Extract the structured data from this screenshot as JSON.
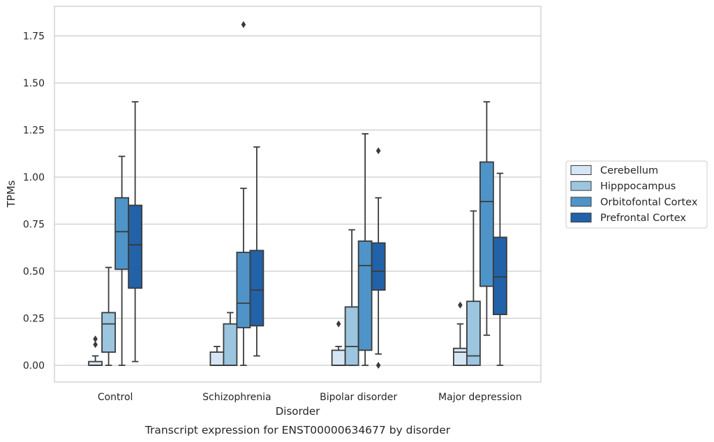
{
  "chart_data": {
    "type": "boxplot",
    "title": "",
    "caption": "Transcript expression for ENST00000634677 by disorder",
    "xlabel": "Disorder",
    "ylabel": "TPMs",
    "ylim": [
      -0.09,
      1.9
    ],
    "yticks": [
      "0.00",
      "0.25",
      "0.50",
      "0.75",
      "1.00",
      "1.25",
      "1.50",
      "1.75"
    ],
    "ytick_values": [
      0,
      0.25,
      0.5,
      0.75,
      1.0,
      1.25,
      1.5,
      1.75
    ],
    "grid": "horizontal",
    "legend_position": "right",
    "categories": [
      "Control",
      "Schizophrenia",
      "Bipolar disorder",
      "Major depression"
    ],
    "series": [
      {
        "name": "Cerebellum",
        "color": "#d6e5f4",
        "boxes": [
          {
            "whislo": 0,
            "q1": 0,
            "med": 0,
            "q3": 0.02,
            "whishi": 0.05,
            "fliers": [
              0.11,
              0.14
            ]
          },
          {
            "whislo": 0,
            "q1": 0,
            "med": 0,
            "q3": 0.07,
            "whishi": 0.1,
            "fliers": []
          },
          {
            "whislo": 0,
            "q1": 0,
            "med": 0,
            "q3": 0.08,
            "whishi": 0.1,
            "fliers": [
              0.22
            ]
          },
          {
            "whislo": 0,
            "q1": 0,
            "med": 0.07,
            "q3": 0.09,
            "whishi": 0.22,
            "fliers": [
              0.32
            ]
          }
        ]
      },
      {
        "name": "Hipppocampus",
        "color": "#9cc5df",
        "boxes": [
          {
            "whislo": 0,
            "q1": 0.07,
            "med": 0.22,
            "q3": 0.28,
            "whishi": 0.52,
            "fliers": []
          },
          {
            "whislo": 0,
            "q1": 0,
            "med": 0,
            "q3": 0.22,
            "whishi": 0.28,
            "fliers": []
          },
          {
            "whislo": 0,
            "q1": 0,
            "med": 0.1,
            "q3": 0.31,
            "whishi": 0.72,
            "fliers": []
          },
          {
            "whislo": 0,
            "q1": 0,
            "med": 0.05,
            "q3": 0.34,
            "whishi": 0.82,
            "fliers": []
          }
        ]
      },
      {
        "name": "Orbitofontal Cortex",
        "color": "#4f94c8",
        "boxes": [
          {
            "whislo": 0,
            "q1": 0.51,
            "med": 0.71,
            "q3": 0.89,
            "whishi": 1.11,
            "fliers": []
          },
          {
            "whislo": 0,
            "q1": 0.2,
            "med": 0.33,
            "q3": 0.6,
            "whishi": 0.94,
            "fliers": [
              1.81
            ]
          },
          {
            "whislo": 0,
            "q1": 0.08,
            "med": 0.53,
            "q3": 0.66,
            "whishi": 1.23,
            "fliers": []
          },
          {
            "whislo": 0.16,
            "q1": 0.42,
            "med": 0.87,
            "q3": 1.08,
            "whishi": 1.4,
            "fliers": []
          }
        ]
      },
      {
        "name": "Prefrontal Cortex",
        "color": "#2262a8",
        "boxes": [
          {
            "whislo": 0.02,
            "q1": 0.41,
            "med": 0.64,
            "q3": 0.85,
            "whishi": 1.4,
            "fliers": []
          },
          {
            "whislo": 0.05,
            "q1": 0.21,
            "med": 0.4,
            "q3": 0.61,
            "whishi": 1.16,
            "fliers": []
          },
          {
            "whislo": 0.06,
            "q1": 0.4,
            "med": 0.5,
            "q3": 0.65,
            "whishi": 0.89,
            "fliers": [
              1.14,
              0
            ]
          },
          {
            "whislo": 0,
            "q1": 0.27,
            "med": 0.47,
            "q3": 0.68,
            "whishi": 1.02,
            "fliers": []
          }
        ]
      }
    ]
  }
}
